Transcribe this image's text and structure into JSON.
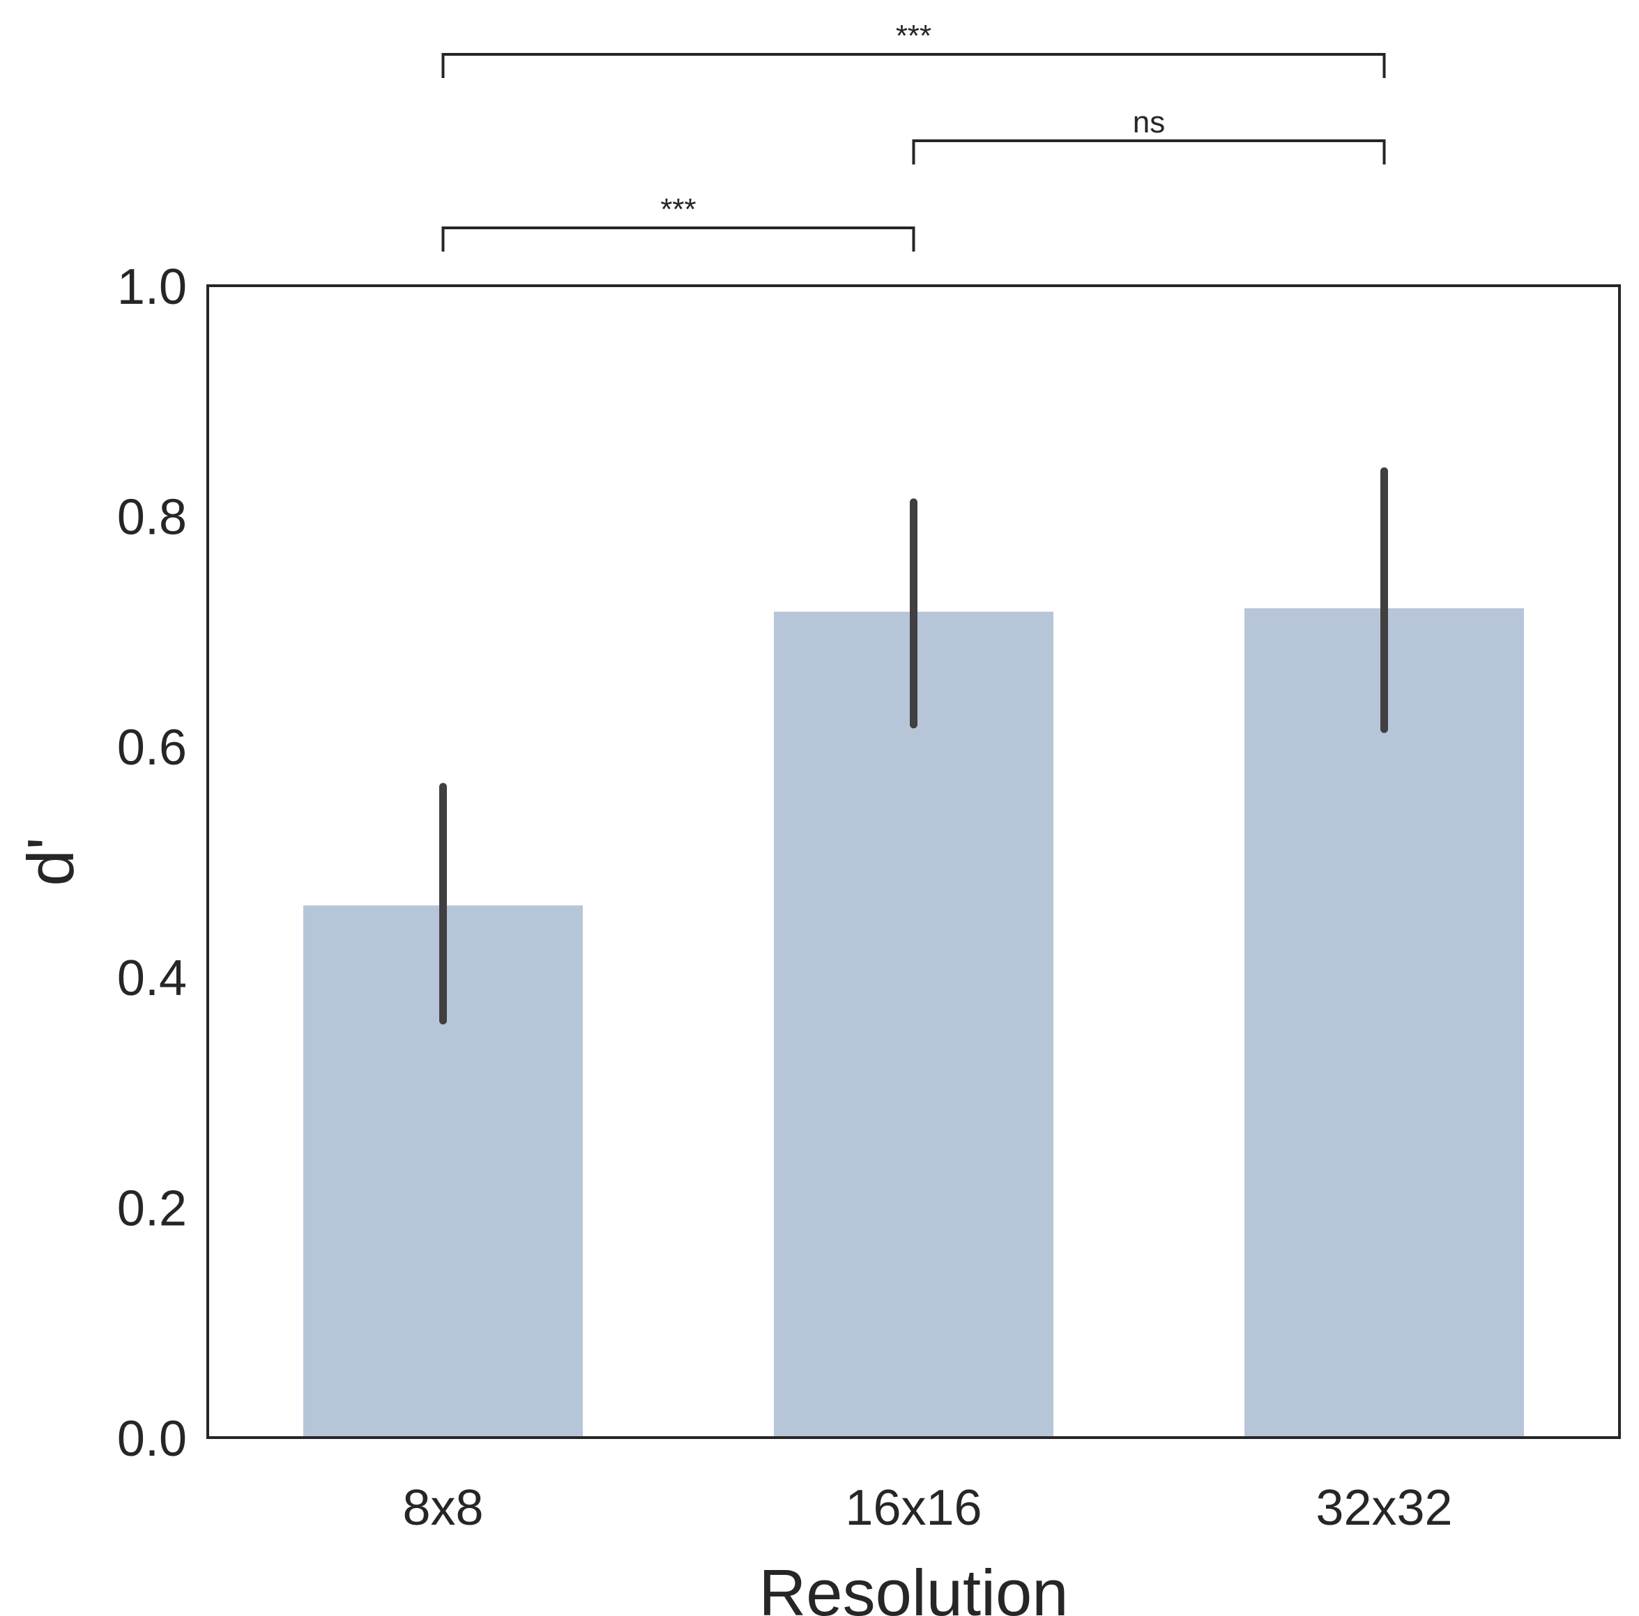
{
  "chart_data": {
    "type": "bar",
    "categories": [
      "8x8",
      "16x16",
      "32x32"
    ],
    "values": [
      0.462,
      0.717,
      0.72
    ],
    "error_bars": [
      {
        "low": 0.362,
        "high": 0.565
      },
      {
        "low": 0.619,
        "high": 0.812
      },
      {
        "low": 0.615,
        "high": 0.839
      }
    ],
    "title": "",
    "xlabel": "Resolution",
    "ylabel": "d'",
    "ylim": [
      0,
      1.0
    ],
    "yticks": [
      "0.0",
      "0.2",
      "0.4",
      "0.6",
      "0.8",
      "1.0"
    ],
    "grid": false,
    "significance": [
      {
        "from": "8x8",
        "to": "16x16",
        "label": "***"
      },
      {
        "from": "16x16",
        "to": "32x32",
        "label": "ns"
      },
      {
        "from": "8x8",
        "to": "32x32",
        "label": "***"
      }
    ],
    "colors": {
      "bar": "#b7c5d9",
      "error_bar": "#404040",
      "axis": "#262626"
    }
  }
}
